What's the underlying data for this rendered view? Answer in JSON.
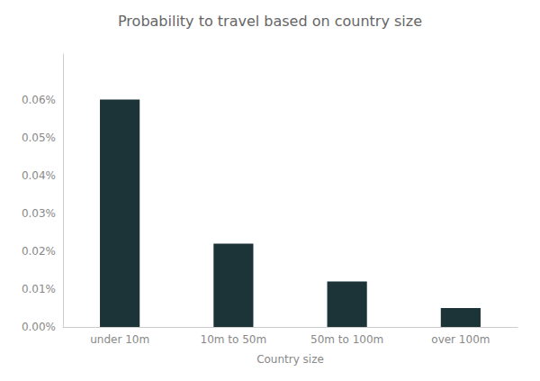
{
  "chart_data": {
    "type": "bar",
    "title": "Probability to travel based on country size",
    "xlabel": "Country size",
    "categories": [
      "under 10m",
      "10m to 50m",
      "50m to 100m",
      "over 100m"
    ],
    "values": [
      0.0006,
      0.00022,
      0.00012,
      5e-05
    ],
    "color": "#1c3337",
    "ylim": [
      0,
      0.00072
    ],
    "yticks": [
      {
        "value": 0.0,
        "label": "0.00%"
      },
      {
        "value": 0.0001,
        "label": "0.01%"
      },
      {
        "value": 0.0002,
        "label": "0.02%"
      },
      {
        "value": 0.0003,
        "label": "0.03%"
      },
      {
        "value": 0.0004,
        "label": "0.04%"
      },
      {
        "value": 0.0005,
        "label": "0.05%"
      },
      {
        "value": 0.0006,
        "label": "0.06%"
      }
    ],
    "grid": false
  }
}
